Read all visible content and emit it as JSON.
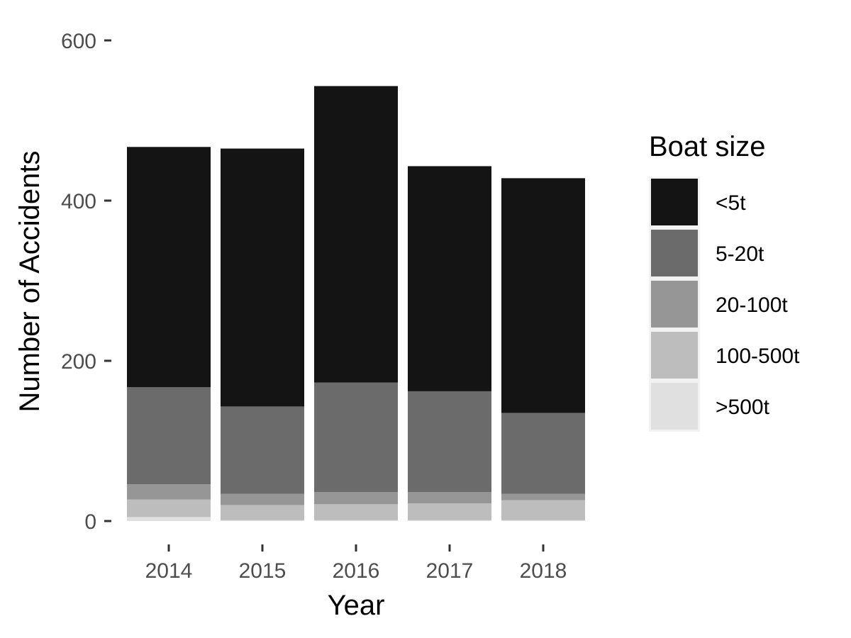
{
  "chart_data": {
    "type": "bar",
    "stacked": true,
    "categories": [
      "2014",
      "2015",
      "2016",
      "2017",
      "2018"
    ],
    "series": [
      {
        "name": ">500t",
        "color": "#e0e0e0",
        "values": [
          5,
          1,
          1,
          1,
          1
        ]
      },
      {
        "name": "100-500t",
        "color": "#bdbdbd",
        "values": [
          22,
          19,
          20,
          21,
          25
        ]
      },
      {
        "name": "20-100t",
        "color": "#969696",
        "values": [
          19,
          14,
          15,
          14,
          8
        ]
      },
      {
        "name": "5-20t",
        "color": "#6b6b6b",
        "values": [
          121,
          109,
          137,
          126,
          101
        ]
      },
      {
        "name": "<5t",
        "color": "#141414",
        "values": [
          300,
          322,
          370,
          281,
          293
        ]
      }
    ],
    "xlabel": "Year",
    "ylabel": "Number of Accidents",
    "ylim": [
      0,
      600
    ],
    "yticks": [
      "0",
      "200",
      "400",
      "600"
    ],
    "grid": false,
    "legend": {
      "title": "Boat size",
      "position": "right",
      "items": [
        "<5t",
        "5-20t",
        "20-100t",
        "100-500t",
        ">500t"
      ]
    }
  }
}
